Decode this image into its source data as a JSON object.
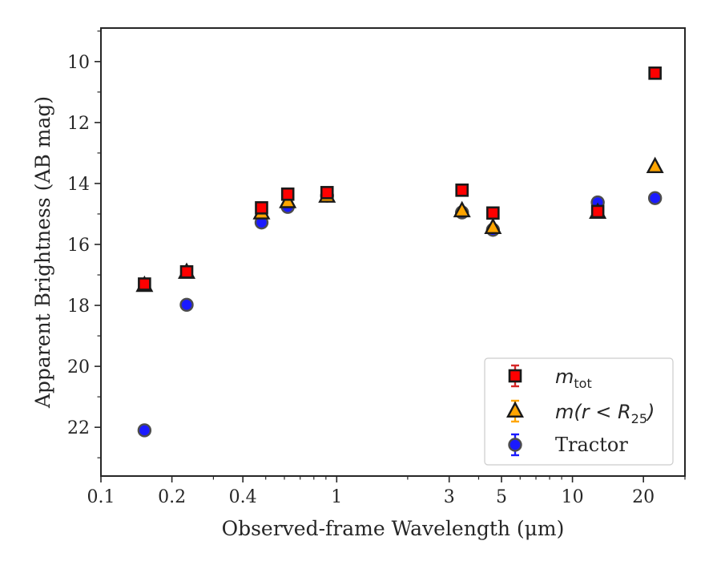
{
  "chart_data": {
    "type": "scatter",
    "xlabel": "Observed-frame Wavelength (μm)",
    "ylabel": "Apparent Brightness (AB mag)",
    "x_scale": "log",
    "xlim": [
      0.1,
      30
    ],
    "ylim": [
      23.6,
      8.9
    ],
    "y_inverted": true,
    "x_ticks": [
      {
        "value": 0.1,
        "label": "0.1"
      },
      {
        "value": 0.2,
        "label": "0.2"
      },
      {
        "value": 0.4,
        "label": "0.4"
      },
      {
        "value": 1,
        "label": "1"
      },
      {
        "value": 3,
        "label": "3"
      },
      {
        "value": 5,
        "label": "5"
      },
      {
        "value": 10,
        "label": "10"
      },
      {
        "value": 20,
        "label": "20"
      }
    ],
    "y_ticks": [
      {
        "value": 10,
        "label": "10"
      },
      {
        "value": 12,
        "label": "12"
      },
      {
        "value": 14,
        "label": "14"
      },
      {
        "value": 16,
        "label": "16"
      },
      {
        "value": 18,
        "label": "18"
      },
      {
        "value": 20,
        "label": "20"
      },
      {
        "value": 22,
        "label": "22"
      }
    ],
    "grid": false,
    "legend_position": "lower-right",
    "series": [
      {
        "name": "m_tot",
        "legend_main": "m",
        "legend_sub": "tot",
        "marker": "square",
        "color": "#ff0000",
        "errorbar_color": "#d62728",
        "x": [
          0.153,
          0.231,
          0.48,
          0.62,
          0.91,
          3.4,
          4.6,
          12.8,
          22.4
        ],
        "y": [
          17.3,
          16.9,
          14.8,
          14.35,
          14.3,
          14.22,
          14.97,
          14.92,
          10.38
        ]
      },
      {
        "name": "m(r < R25)",
        "legend_main": "m(r < R",
        "legend_sub": "25",
        "legend_tail": ")",
        "marker": "triangle",
        "color": "#ffa500",
        "errorbar_color": "#ffa500",
        "x": [
          0.153,
          0.231,
          0.48,
          0.62,
          0.91,
          3.4,
          4.6,
          12.8,
          22.4
        ],
        "y": [
          17.35,
          16.92,
          14.97,
          14.6,
          14.42,
          14.9,
          15.45,
          14.95,
          13.45
        ]
      },
      {
        "name": "Tractor",
        "marker": "circle",
        "color": "#1a1aff",
        "errorbar_color": "#1a1aff",
        "x": [
          0.153,
          0.231,
          0.48,
          0.62,
          0.91,
          3.4,
          4.6,
          12.8,
          22.4
        ],
        "y": [
          22.1,
          17.98,
          15.28,
          14.77,
          14.4,
          14.95,
          15.52,
          14.62,
          14.48
        ]
      }
    ]
  },
  "legend": {
    "tractor_label": "Tractor"
  }
}
